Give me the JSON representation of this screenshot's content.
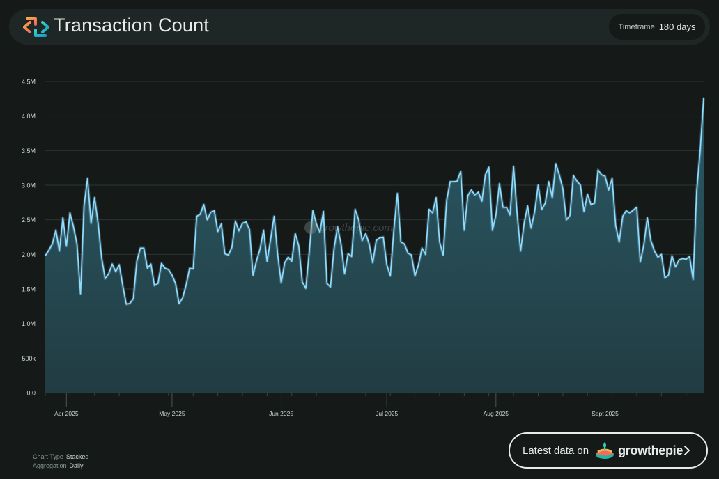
{
  "header": {
    "title": "Transaction Count",
    "timeframe_label": "Timeframe",
    "timeframe_value": "180 days"
  },
  "chart_data": {
    "type": "area",
    "title": "Transaction Count",
    "xlabel": "",
    "ylabel": "",
    "ylim": [
      0,
      4500000
    ],
    "y_ticks": [
      "0.0",
      "500k",
      "1.0M",
      "1.5M",
      "2.0M",
      "2.5M",
      "3.0M",
      "3.5M",
      "4.0M",
      "4.5M"
    ],
    "y_tick_values": [
      0,
      500000,
      1000000,
      1500000,
      2000000,
      2500000,
      3000000,
      3500000,
      4000000,
      4500000
    ],
    "x_ticks": [
      "Apr 2025",
      "May 2025",
      "Jun 2025",
      "Jul 2025",
      "Aug 2025",
      "Sept 2025"
    ],
    "x_tick_dates": [
      "2025-04-01",
      "2025-05-01",
      "2025-06-01",
      "2025-07-01",
      "2025-08-01",
      "2025-09-01"
    ],
    "start_date": "2025-03-26",
    "grid": true,
    "values": [
      1980000,
      2060000,
      2150000,
      2350000,
      2050000,
      2530000,
      2120000,
      2600000,
      2400000,
      2150000,
      1430000,
      2700000,
      3100000,
      2450000,
      2820000,
      2450000,
      1950000,
      1650000,
      1720000,
      1860000,
      1750000,
      1850000,
      1550000,
      1280000,
      1290000,
      1360000,
      1900000,
      2090000,
      2090000,
      1800000,
      1860000,
      1550000,
      1580000,
      1870000,
      1800000,
      1780000,
      1700000,
      1580000,
      1290000,
      1370000,
      1560000,
      1800000,
      1790000,
      2550000,
      2580000,
      2720000,
      2500000,
      2610000,
      2630000,
      2330000,
      2440000,
      2010000,
      1990000,
      2100000,
      2480000,
      2340000,
      2450000,
      2470000,
      2360000,
      1700000,
      1910000,
      2080000,
      2350000,
      1900000,
      2220000,
      2550000,
      2000000,
      1590000,
      1880000,
      1960000,
      1900000,
      2300000,
      2120000,
      1600000,
      1510000,
      2050000,
      2630000,
      2440000,
      2320000,
      2620000,
      1580000,
      1530000,
      2080000,
      2400000,
      2150000,
      1720000,
      2010000,
      1970000,
      2650000,
      2500000,
      2200000,
      2300000,
      2150000,
      1880000,
      2200000,
      2240000,
      2250000,
      1850000,
      1690000,
      2350000,
      2880000,
      2180000,
      2150000,
      2020000,
      1990000,
      1690000,
      1850000,
      2090000,
      2000000,
      2650000,
      2600000,
      2820000,
      2180000,
      1990000,
      2780000,
      3050000,
      3050000,
      3060000,
      3200000,
      2350000,
      2850000,
      2930000,
      2860000,
      2900000,
      2770000,
      3150000,
      3260000,
      2350000,
      2570000,
      3020000,
      2680000,
      2680000,
      2570000,
      3270000,
      2600000,
      2050000,
      2450000,
      2700000,
      2380000,
      2620000,
      3000000,
      2650000,
      2740000,
      3050000,
      2820000,
      3310000,
      3150000,
      2950000,
      2500000,
      2560000,
      3140000,
      3060000,
      3000000,
      2620000,
      2870000,
      2720000,
      2740000,
      3220000,
      3150000,
      3130000,
      2930000,
      3100000,
      2420000,
      2180000,
      2550000,
      2630000,
      2600000,
      2640000,
      2680000,
      1890000,
      2140000,
      2530000,
      2200000,
      2050000,
      1960000,
      2000000,
      1660000,
      1700000,
      1980000,
      1820000,
      1920000,
      1940000,
      1930000,
      1970000,
      1640000,
      2910000,
      3500000,
      4260000
    ]
  },
  "footer": {
    "chart_type_label": "Chart Type",
    "chart_type_value": "Stacked",
    "aggregation_label": "Aggregation",
    "aggregation_value": "Daily"
  },
  "cta": {
    "text": "Latest data on",
    "brand": "growthepie"
  },
  "watermark": "growthepie.com",
  "colors": {
    "line": "#8fdcff",
    "fill_top": "#2c5d6a",
    "fill_bottom": "#223e44",
    "grid": "#2b3533",
    "background": "#151a19",
    "header_bg": "#1f2726"
  },
  "icons": {
    "header": "transaction-arrows-icon",
    "brand": "growthepie-pie-icon",
    "chevron": "chevron-right-icon"
  }
}
